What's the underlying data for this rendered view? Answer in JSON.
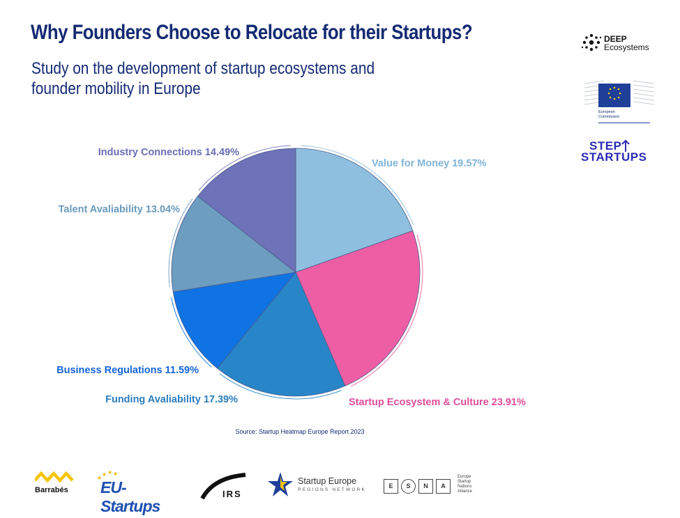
{
  "header": {
    "title": "Why Founders Choose to Relocate for their Startups?",
    "subtitle_line1": "Study on the development of startup ecosystems and",
    "subtitle_line2": "founder mobility in Europe"
  },
  "source": "Source: Startup Heatmap Europe Report 2023",
  "chart_data": {
    "type": "pie",
    "start_angle": "12 o'clock",
    "direction": "clockwise",
    "slices": [
      {
        "label": "Value for Money 19.57%",
        "value": 19.57,
        "color": "#8fbfdf",
        "label_color": "#7fb4d8"
      },
      {
        "label": "Startup Ecosystem & Culture 23.91%",
        "value": 23.91,
        "color": "#ee5ea4",
        "label_color": "#e04e9a"
      },
      {
        "label": "Funding Avaliability 17.39%",
        "value": 17.39,
        "color": "#2886c8",
        "label_color": "#2a7dc0"
      },
      {
        "label": "Business Regulations 11.59%",
        "value": 11.59,
        "color": "#0f73e3",
        "label_color": "#1565d8"
      },
      {
        "label": "Talent Avaliability 13.04%",
        "value": 13.04,
        "color": "#6d9dbf",
        "label_color": "#6a9bbd"
      },
      {
        "label": "Industry Connections 14.49%",
        "value": 14.49,
        "color": "#6e72b8",
        "label_color": "#6a6eb5"
      }
    ]
  },
  "logos": {
    "deep_line1": "DEEP",
    "deep_line2": "Ecosystems",
    "ec_line1": "European",
    "ec_line2": "Commission",
    "step_line1": "STEP",
    "step_line2": "START",
    "step_line3": "UPS",
    "barrabes": "Barrabés",
    "eu_startups": "EU-Startups",
    "irs": "IRS",
    "sere_line1": "Startup Europe",
    "sere_line2": "REGIONS NETWORK",
    "esna_e": "E",
    "esna_s": "S",
    "esna_n": "N",
    "esna_a": "A",
    "esna_text": "Europe Startup Nations Alliance"
  }
}
